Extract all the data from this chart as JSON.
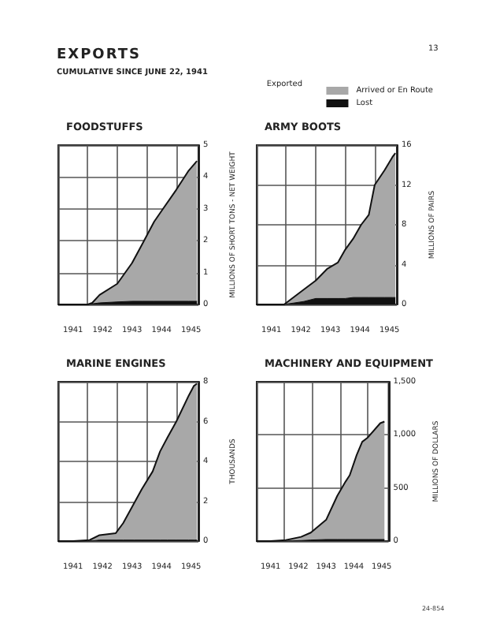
{
  "chart_data": [
    {
      "type": "other",
      "title": "EXPORTS",
      "subtitle": "CUMULATIVE SINCE JUNE 22, 1941",
      "annotations": [
        "13",
        "24-854"
      ]
    },
    {
      "type": "area",
      "title": "FOODSTUFFS",
      "ylabel": "MILLIONS OF SHORT TONS - NET WEIGHT",
      "stacked": true,
      "grid": true,
      "x": [
        1941.0,
        1941.5,
        1942.0,
        1942.15,
        1942.4,
        1943.0,
        1943.5,
        1943.85,
        1944.25,
        1944.55,
        1945.0,
        1945.42,
        1945.7
      ],
      "series": [
        {
          "color": "#111111",
          "values": [
            0,
            0,
            0,
            0.02,
            0.05,
            0.08,
            0.1,
            0.1,
            0.1,
            0.1,
            0.1,
            0.1,
            0.1
          ]
        },
        {
          "color": "#a8a8a8",
          "values": [
            0,
            0,
            0,
            0.03,
            0.25,
            0.57,
            1.2,
            1.8,
            2.5,
            2.9,
            3.5,
            4.1,
            4.4
          ]
        }
      ],
      "xlim": [
        1941,
        1945.75
      ],
      "xticks": [
        {
          "value": 1941.5,
          "label": "1941"
        },
        {
          "value": 1942.5,
          "label": "1942"
        },
        {
          "value": 1943.5,
          "label": "1943"
        },
        {
          "value": 1944.5,
          "label": "1944"
        },
        {
          "value": 1945.5,
          "label": "1945"
        },
        {
          "value": 1942,
          "label": null
        },
        {
          "value": 1943,
          "label": null
        },
        {
          "value": 1944,
          "label": null
        },
        {
          "value": 1945,
          "label": null
        }
      ],
      "ylim": [
        0,
        5
      ],
      "yticks": [
        0,
        1,
        2,
        3,
        4,
        5
      ]
    },
    {
      "type": "area",
      "title": "ARMY BOOTS",
      "ylabel": "MILLIONS OF PAIRS",
      "stacked": true,
      "grid": true,
      "legend": "top right",
      "legend_title": "Exported",
      "x": [
        1941.0,
        1941.5,
        1941.93,
        1942.6,
        1943.0,
        1943.4,
        1943.75,
        1944.0,
        1944.27,
        1944.54,
        1944.8,
        1945.0,
        1945.34,
        1945.6,
        1945.7
      ],
      "series": [
        {
          "name": "Lost",
          "color": "#111111",
          "values": [
            0,
            0,
            0,
            0.3,
            0.6,
            0.6,
            0.6,
            0.6,
            0.7,
            0.7,
            0.7,
            0.7,
            0.7,
            0.7,
            0.7
          ]
        },
        {
          "name": "Arrived or En Route",
          "color": "#a8a8a8",
          "values": [
            0,
            0,
            0,
            1.2,
            1.8,
            3.0,
            3.6,
            4.9,
            5.9,
            7.3,
            8.3,
            11.3,
            12.8,
            14.1,
            14.5
          ]
        }
      ],
      "xlim": [
        1941,
        1945.75
      ],
      "xticks": [
        {
          "value": 1941.5,
          "label": "1941"
        },
        {
          "value": 1942.5,
          "label": "1942"
        },
        {
          "value": 1943.5,
          "label": "1943"
        },
        {
          "value": 1944.5,
          "label": "1944"
        },
        {
          "value": 1945.5,
          "label": "1945"
        },
        {
          "value": 1942,
          "label": null
        },
        {
          "value": 1943,
          "label": null
        },
        {
          "value": 1944,
          "label": null
        },
        {
          "value": 1945,
          "label": null
        }
      ],
      "ylim": [
        0,
        16
      ],
      "yticks": [
        0,
        4,
        8,
        12,
        16
      ]
    },
    {
      "type": "area",
      "title": "MARINE ENGINES",
      "ylabel": "THOUSANDS",
      "stacked": true,
      "grid": true,
      "x": [
        1941.0,
        1941.5,
        1942.06,
        1942.4,
        1942.95,
        1943.2,
        1943.57,
        1943.83,
        1944.2,
        1944.45,
        1944.7,
        1945.0,
        1945.42,
        1945.6,
        1945.7
      ],
      "series": [
        {
          "color": "#111111",
          "values": [
            0,
            0,
            0,
            0.05,
            0.05,
            0.05,
            0.05,
            0.05,
            0.05,
            0.05,
            0.05,
            0.05,
            0.05,
            0.05,
            0.05
          ]
        },
        {
          "color": "#a8a8a8",
          "values": [
            0,
            0,
            0.05,
            0.25,
            0.35,
            0.85,
            1.85,
            2.55,
            3.45,
            4.45,
            5.15,
            5.95,
            7.25,
            7.75,
            7.85
          ]
        }
      ],
      "xlim": [
        1941,
        1945.75
      ],
      "xticks": [
        {
          "value": 1941.5,
          "label": "1941"
        },
        {
          "value": 1942.5,
          "label": "1942"
        },
        {
          "value": 1943.5,
          "label": "1943"
        },
        {
          "value": 1944.5,
          "label": "1944"
        },
        {
          "value": 1945.5,
          "label": "1945"
        },
        {
          "value": 1942,
          "label": null
        },
        {
          "value": 1943,
          "label": null
        },
        {
          "value": 1944,
          "label": null
        },
        {
          "value": 1945,
          "label": null
        }
      ],
      "ylim": [
        0,
        8
      ],
      "yticks": [
        0,
        2,
        4,
        6,
        8
      ]
    },
    {
      "type": "area",
      "title": "MACHINERY AND EQUIPMENT",
      "ylabel": "MILLIONS OF DOLLARS",
      "stacked": true,
      "grid": true,
      "x": [
        1941.0,
        1941.5,
        1942.05,
        1942.6,
        1942.95,
        1943.5,
        1943.9,
        1944.2,
        1944.35,
        1944.6,
        1944.8,
        1945.0,
        1945.45,
        1945.6
      ],
      "series": [
        {
          "color": "#111111",
          "values": [
            0,
            0,
            0,
            5,
            10,
            15,
            15,
            15,
            15,
            15,
            15,
            15,
            15,
            15
          ]
        },
        {
          "color": "#a8a8a8",
          "values": [
            0,
            0,
            10,
            35,
            70,
            185,
            410,
            545,
            605,
            795,
            920,
            960,
            1095,
            1110
          ]
        }
      ],
      "xlim": [
        1941,
        1945.75
      ],
      "xticks": [
        {
          "value": 1941.5,
          "label": "1941"
        },
        {
          "value": 1942.5,
          "label": "1942"
        },
        {
          "value": 1943.5,
          "label": "1943"
        },
        {
          "value": 1944.5,
          "label": "1944"
        },
        {
          "value": 1945.5,
          "label": "1945"
        },
        {
          "value": 1942,
          "label": null
        },
        {
          "value": 1943,
          "label": null
        },
        {
          "value": 1944,
          "label": null
        },
        {
          "value": 1945,
          "label": null
        }
      ],
      "ylim": [
        0,
        1500
      ],
      "yticks": [
        0,
        {
          "value": 500,
          "label": "500"
        },
        {
          "value": 1000,
          "label": "1,000"
        },
        {
          "value": 1500,
          "label": "1,500"
        }
      ]
    }
  ]
}
